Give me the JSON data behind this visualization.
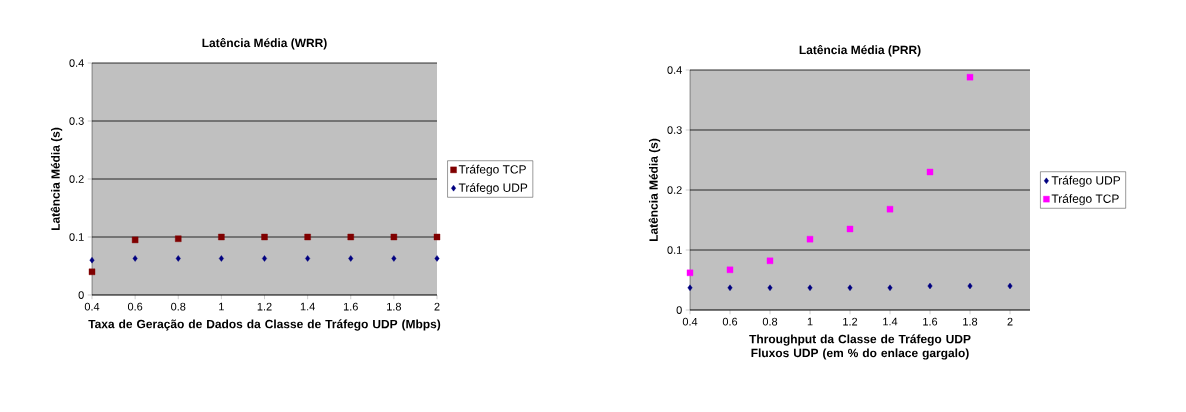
{
  "chart_data": [
    {
      "type": "scatter",
      "title": "Latência Média (WRR)",
      "xlabel": "Taxa de Geração de Dados da Classe de Tráfego UDP (Mbps)",
      "ylabel": "Latência Média (s)",
      "x": [
        0.4,
        0.6,
        0.8,
        1,
        1.2,
        1.4,
        1.6,
        1.8,
        2
      ],
      "xlim": [
        0.4,
        2
      ],
      "xticks": [
        0.4,
        0.6,
        0.8,
        1,
        1.2,
        1.4,
        1.6,
        1.8,
        2
      ],
      "ylim": [
        0,
        0.4
      ],
      "yticks": [
        0,
        0.1,
        0.2,
        0.3,
        0.4
      ],
      "grid": "y",
      "legend": "right",
      "series": [
        {
          "name": "Tráfego TCP",
          "color": "#800000",
          "marker": "square",
          "values": [
            0.04,
            0.095,
            0.097,
            0.1,
            0.1,
            0.1,
            0.1,
            0.1,
            0.1
          ]
        },
        {
          "name": "Tráfego UDP",
          "color": "#000080",
          "marker": "diamond",
          "values": [
            0.06,
            0.063,
            0.063,
            0.063,
            0.063,
            0.063,
            0.063,
            0.063,
            0.063
          ]
        }
      ]
    },
    {
      "type": "scatter",
      "title": "Latência Média (PRR)",
      "xlabel": "Throughput da Classe de Tráfego UDP Fluxos UDP (em % do enlace gargalo)",
      "ylabel": "Latência Média (s)",
      "x": [
        0.4,
        0.6,
        0.8,
        1,
        1.2,
        1.4,
        1.6,
        1.8,
        2
      ],
      "xlim": [
        0.4,
        2.1
      ],
      "xticks": [
        0.4,
        0.6,
        0.8,
        1,
        1.2,
        1.4,
        1.6,
        1.8,
        2
      ],
      "ylim": [
        0,
        0.4
      ],
      "yticks": [
        0,
        0.1,
        0.2,
        0.3,
        0.4
      ],
      "grid": "y",
      "legend": "right",
      "series": [
        {
          "name": "Tráfego UDP",
          "color": "#000080",
          "marker": "diamond",
          "values": [
            0.037,
            0.037,
            0.037,
            0.037,
            0.037,
            0.037,
            0.04,
            0.04,
            0.04
          ]
        },
        {
          "name": "Tráfego TCP",
          "color": "#ff00ff",
          "marker": "square",
          "values": [
            0.062,
            0.067,
            0.082,
            0.118,
            0.135,
            0.168,
            0.23,
            0.388,
            null
          ]
        }
      ]
    }
  ]
}
